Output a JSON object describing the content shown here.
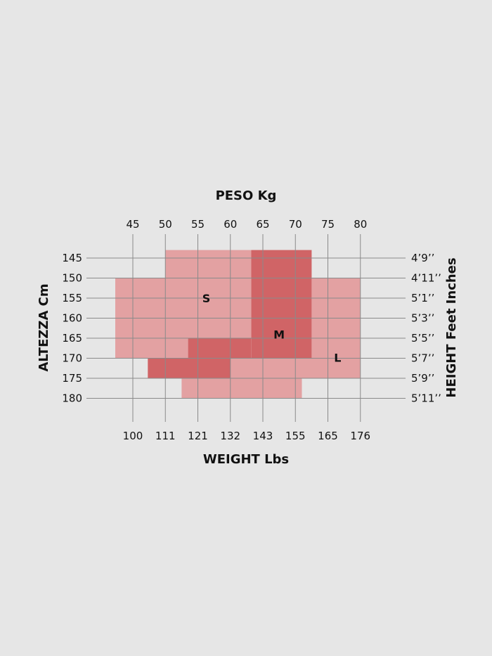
{
  "chart_data": {
    "type": "heatmap",
    "top_axis": {
      "title": "PESO Kg",
      "ticks": [
        "45",
        "50",
        "55",
        "60",
        "65",
        "70",
        "75",
        "80"
      ],
      "values": [
        45,
        50,
        55,
        60,
        65,
        70,
        75,
        80
      ]
    },
    "bottom_axis": {
      "title": "WEIGHT Lbs",
      "ticks": [
        "100",
        "111",
        "121",
        "132",
        "143",
        "155",
        "165",
        "176"
      ]
    },
    "left_axis": {
      "title": "ALTEZZA Cm",
      "ticks": [
        "145",
        "150",
        "155",
        "160",
        "165",
        "170",
        "175",
        "180"
      ],
      "values": [
        145,
        150,
        155,
        160,
        165,
        170,
        175,
        180
      ]
    },
    "right_axis": {
      "title": "HEIGHT Feet Inches",
      "ticks": [
        "4’9’’",
        "4’11’’",
        "5’1’’",
        "5’3’’",
        "5’5’’",
        "5’7’’",
        "5’9’’",
        "5’11’’"
      ]
    },
    "colors": {
      "light": "#e3a1a2",
      "dark": "#d06466",
      "grid": "#8a8a8a",
      "background": "#e6e6e6"
    },
    "zones": [
      {
        "label": "S",
        "color": "light",
        "regions": [
          {
            "kg": [
              50,
              63.2
            ],
            "cm": [
              143,
              150
            ]
          },
          {
            "kg": [
              42.3,
              63.2
            ],
            "cm": [
              150,
              165
            ]
          },
          {
            "kg": [
              42.3,
              53.5
            ],
            "cm": [
              165,
              170
            ]
          }
        ]
      },
      {
        "label": "L",
        "color": "light",
        "regions": [
          {
            "kg": [
              72.5,
              80
            ],
            "cm": [
              150,
              170
            ]
          },
          {
            "kg": [
              60,
              80
            ],
            "cm": [
              170,
              175
            ]
          },
          {
            "kg": [
              52.5,
              71
            ],
            "cm": [
              175,
              180
            ]
          }
        ]
      },
      {
        "label": "M",
        "color": "dark",
        "regions": [
          {
            "kg": [
              63.2,
              72.5
            ],
            "cm": [
              143,
              170
            ]
          },
          {
            "kg": [
              53.5,
              63.2
            ],
            "cm": [
              165,
              170
            ]
          },
          {
            "kg": [
              47.3,
              60
            ],
            "cm": [
              170,
              175
            ]
          }
        ]
      }
    ],
    "zone_labels": [
      {
        "text": "S",
        "kg": 56.3,
        "cm": 155
      },
      {
        "text": "M",
        "kg": 67.5,
        "cm": 164
      },
      {
        "text": "L",
        "kg": 76.5,
        "cm": 169.8
      }
    ]
  }
}
